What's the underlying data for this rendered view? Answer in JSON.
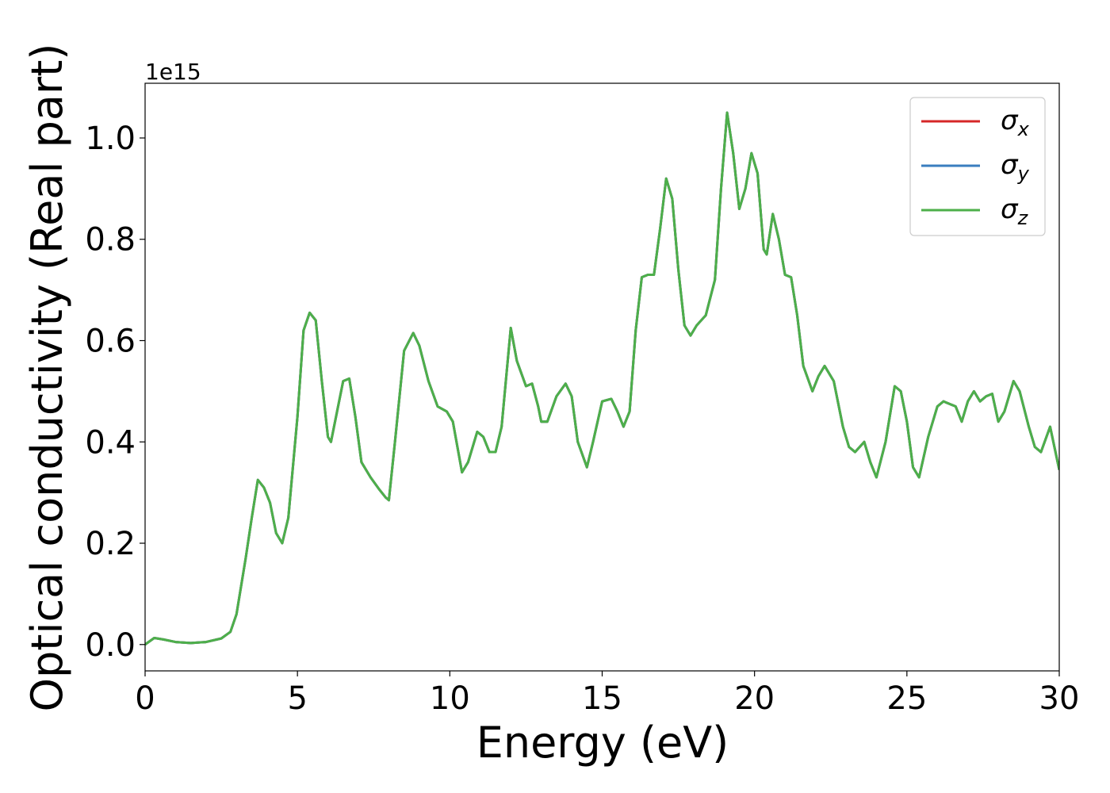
{
  "chart_data": {
    "type": "line",
    "xlabel": "Energy (eV)",
    "ylabel": "Optical conductivity (Real part)",
    "offset_label": "1e15",
    "x": [
      0,
      0.3,
      0.6,
      1.0,
      1.5,
      2.0,
      2.5,
      2.8,
      3.0,
      3.3,
      3.5,
      3.7,
      3.9,
      4.1,
      4.3,
      4.5,
      4.7,
      5.0,
      5.2,
      5.4,
      5.6,
      5.8,
      6.0,
      6.1,
      6.3,
      6.5,
      6.7,
      6.9,
      7.1,
      7.4,
      7.7,
      7.9,
      8.0,
      8.2,
      8.5,
      8.8,
      9.0,
      9.3,
      9.6,
      9.9,
      10.1,
      10.4,
      10.6,
      10.9,
      11.1,
      11.3,
      11.5,
      11.7,
      12.0,
      12.2,
      12.5,
      12.7,
      12.9,
      13.0,
      13.2,
      13.5,
      13.8,
      14.0,
      14.2,
      14.5,
      14.7,
      15.0,
      15.3,
      15.5,
      15.7,
      15.9,
      16.1,
      16.3,
      16.5,
      16.7,
      16.9,
      17.1,
      17.3,
      17.5,
      17.7,
      17.9,
      18.1,
      18.4,
      18.7,
      18.9,
      19.1,
      19.3,
      19.5,
      19.7,
      19.9,
      20.1,
      20.3,
      20.4,
      20.6,
      20.8,
      21.0,
      21.2,
      21.4,
      21.6,
      21.9,
      22.1,
      22.3,
      22.6,
      22.9,
      23.1,
      23.3,
      23.6,
      23.8,
      24.0,
      24.3,
      24.6,
      24.8,
      25.0,
      25.2,
      25.4,
      25.7,
      26.0,
      26.2,
      26.4,
      26.6,
      26.8,
      27.0,
      27.2,
      27.4,
      27.6,
      27.8,
      28.0,
      28.2,
      28.5,
      28.7,
      29.0,
      29.2,
      29.4,
      29.7,
      30.0
    ],
    "series": [
      {
        "name": "σx",
        "color": "#d62728",
        "values": [
          0.0,
          0.013,
          0.01,
          0.005,
          0.003,
          0.005,
          0.012,
          0.025,
          0.06,
          0.17,
          0.25,
          0.325,
          0.31,
          0.28,
          0.22,
          0.2,
          0.25,
          0.45,
          0.62,
          0.655,
          0.64,
          0.52,
          0.41,
          0.4,
          0.46,
          0.52,
          0.525,
          0.45,
          0.36,
          0.33,
          0.305,
          0.29,
          0.285,
          0.4,
          0.58,
          0.615,
          0.59,
          0.52,
          0.47,
          0.46,
          0.44,
          0.34,
          0.36,
          0.42,
          0.41,
          0.38,
          0.38,
          0.43,
          0.625,
          0.56,
          0.51,
          0.515,
          0.47,
          0.44,
          0.44,
          0.49,
          0.515,
          0.49,
          0.4,
          0.35,
          0.4,
          0.48,
          0.485,
          0.46,
          0.43,
          0.46,
          0.62,
          0.725,
          0.73,
          0.73,
          0.82,
          0.92,
          0.88,
          0.74,
          0.63,
          0.61,
          0.63,
          0.65,
          0.72,
          0.9,
          1.05,
          0.97,
          0.86,
          0.9,
          0.97,
          0.93,
          0.78,
          0.77,
          0.85,
          0.8,
          0.73,
          0.725,
          0.65,
          0.55,
          0.5,
          0.53,
          0.55,
          0.52,
          0.43,
          0.39,
          0.38,
          0.4,
          0.36,
          0.33,
          0.4,
          0.51,
          0.5,
          0.44,
          0.35,
          0.33,
          0.41,
          0.47,
          0.48,
          0.475,
          0.47,
          0.44,
          0.48,
          0.5,
          0.48,
          0.49,
          0.495,
          0.44,
          0.46,
          0.52,
          0.5,
          0.43,
          0.39,
          0.38,
          0.43,
          0.345
        ]
      },
      {
        "name": "σy",
        "color": "#3a7ebf",
        "values": [
          0.0,
          0.013,
          0.01,
          0.005,
          0.003,
          0.005,
          0.012,
          0.025,
          0.06,
          0.17,
          0.25,
          0.325,
          0.31,
          0.28,
          0.22,
          0.2,
          0.25,
          0.45,
          0.62,
          0.655,
          0.64,
          0.52,
          0.41,
          0.4,
          0.46,
          0.52,
          0.525,
          0.45,
          0.36,
          0.33,
          0.305,
          0.29,
          0.285,
          0.4,
          0.58,
          0.615,
          0.59,
          0.52,
          0.47,
          0.46,
          0.44,
          0.34,
          0.36,
          0.42,
          0.41,
          0.38,
          0.38,
          0.43,
          0.625,
          0.56,
          0.51,
          0.515,
          0.47,
          0.44,
          0.44,
          0.49,
          0.515,
          0.49,
          0.4,
          0.35,
          0.4,
          0.48,
          0.485,
          0.46,
          0.43,
          0.46,
          0.62,
          0.725,
          0.73,
          0.73,
          0.82,
          0.92,
          0.88,
          0.74,
          0.63,
          0.61,
          0.63,
          0.65,
          0.72,
          0.9,
          1.05,
          0.97,
          0.86,
          0.9,
          0.97,
          0.93,
          0.78,
          0.77,
          0.85,
          0.8,
          0.73,
          0.725,
          0.65,
          0.55,
          0.5,
          0.53,
          0.55,
          0.52,
          0.43,
          0.39,
          0.38,
          0.4,
          0.36,
          0.33,
          0.4,
          0.51,
          0.5,
          0.44,
          0.35,
          0.33,
          0.41,
          0.47,
          0.48,
          0.475,
          0.47,
          0.44,
          0.48,
          0.5,
          0.48,
          0.49,
          0.495,
          0.44,
          0.46,
          0.52,
          0.5,
          0.43,
          0.39,
          0.38,
          0.43,
          0.345
        ]
      },
      {
        "name": "σz",
        "color": "#4daf4a",
        "values": [
          0.0,
          0.013,
          0.01,
          0.005,
          0.003,
          0.005,
          0.012,
          0.025,
          0.06,
          0.17,
          0.25,
          0.325,
          0.31,
          0.28,
          0.22,
          0.2,
          0.25,
          0.45,
          0.62,
          0.655,
          0.64,
          0.52,
          0.41,
          0.4,
          0.46,
          0.52,
          0.525,
          0.45,
          0.36,
          0.33,
          0.305,
          0.29,
          0.285,
          0.4,
          0.58,
          0.615,
          0.59,
          0.52,
          0.47,
          0.46,
          0.44,
          0.34,
          0.36,
          0.42,
          0.41,
          0.38,
          0.38,
          0.43,
          0.625,
          0.56,
          0.51,
          0.515,
          0.47,
          0.44,
          0.44,
          0.49,
          0.515,
          0.49,
          0.4,
          0.35,
          0.4,
          0.48,
          0.485,
          0.46,
          0.43,
          0.46,
          0.62,
          0.725,
          0.73,
          0.73,
          0.82,
          0.92,
          0.88,
          0.74,
          0.63,
          0.61,
          0.63,
          0.65,
          0.72,
          0.9,
          1.05,
          0.97,
          0.86,
          0.9,
          0.97,
          0.93,
          0.78,
          0.77,
          0.85,
          0.8,
          0.73,
          0.725,
          0.65,
          0.55,
          0.5,
          0.53,
          0.55,
          0.52,
          0.43,
          0.39,
          0.38,
          0.4,
          0.36,
          0.33,
          0.4,
          0.51,
          0.5,
          0.44,
          0.35,
          0.33,
          0.41,
          0.47,
          0.48,
          0.475,
          0.47,
          0.44,
          0.48,
          0.5,
          0.48,
          0.49,
          0.495,
          0.44,
          0.46,
          0.52,
          0.5,
          0.43,
          0.39,
          0.38,
          0.43,
          0.345
        ]
      }
    ],
    "xlim": [
      0,
      30
    ],
    "xticks": [
      0,
      5,
      10,
      15,
      20,
      25,
      30
    ],
    "ylim": [
      -0.052,
      1.108
    ],
    "yticks": [
      {
        "value": 0,
        "label": "0.0"
      },
      {
        "value": 0.2,
        "label": "0.2"
      },
      {
        "value": 0.4,
        "label": "0.4"
      },
      {
        "value": 0.6,
        "label": "0.6"
      },
      {
        "value": 0.8,
        "label": "0.8"
      },
      {
        "value": 1.0,
        "label": "1.0"
      }
    ],
    "grid": false,
    "legend": "upper right"
  }
}
